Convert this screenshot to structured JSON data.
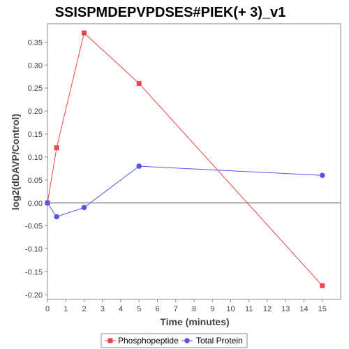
{
  "chart_data": {
    "type": "line",
    "title": "SSISPMDEPVPDSES#PIEK(+ 3)_v1",
    "xlabel": "Time (minutes)",
    "ylabel": "log2(dDAVP/Control)",
    "xlim": [
      0,
      16
    ],
    "ylim": [
      -0.21,
      0.39
    ],
    "x_ticks": [
      0,
      1,
      2,
      3,
      4,
      5,
      6,
      7,
      8,
      9,
      10,
      11,
      12,
      13,
      14,
      15
    ],
    "y_ticks": [
      -0.2,
      -0.15,
      -0.1,
      -0.05,
      0.0,
      0.05,
      0.1,
      0.15,
      0.2,
      0.25,
      0.3,
      0.35
    ],
    "y_tick_labels": [
      "-0.20",
      "-0.15",
      "-0.10",
      "-0.05",
      "0.00",
      "0.05",
      "0.10",
      "0.15",
      "0.20",
      "0.25",
      "0.30",
      "0.35"
    ],
    "x_tick_labels": [
      "0",
      "1",
      "2",
      "3",
      "4",
      "5",
      "6",
      "7",
      "8",
      "9",
      "10",
      "11",
      "12",
      "13",
      "14",
      "15"
    ],
    "zero_line": true,
    "grid": false,
    "legend_position": "bottom",
    "series": [
      {
        "name": "Phosphopeptide",
        "color": "#e8474a",
        "marker": "square",
        "x": [
          0,
          0.5,
          2,
          5,
          15
        ],
        "y": [
          0.0,
          0.12,
          0.37,
          0.26,
          -0.18
        ]
      },
      {
        "name": "Total Protein",
        "color": "#5555e8",
        "marker": "circle",
        "x": [
          0,
          0.5,
          2,
          5,
          15
        ],
        "y": [
          0.0,
          -0.03,
          -0.01,
          0.08,
          0.06
        ]
      }
    ]
  }
}
